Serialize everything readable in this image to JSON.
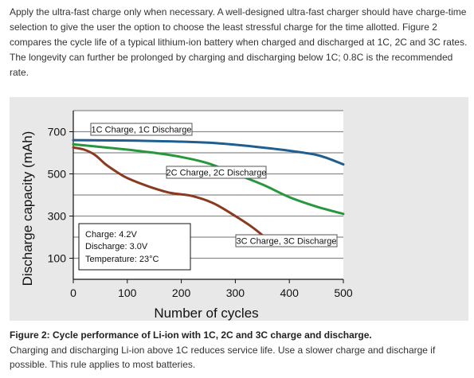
{
  "intro_text": "Apply the ultra-fast charge only when necessary. A well-designed ultra-fast charger should have charge-time selection to give the user the option to choose the least stressful charge for the time allotted. Figure 2 compares the cycle life of a typical lithium-ion battery when charged and discharged at 1C, 2C and 3C rates. The longevity can further be prolonged by charging and discharging below 1C; 0.8C is the recommended rate.",
  "caption": {
    "title": "Figure 2: Cycle performance of Li-ion with 1C, 2C and 3C charge and discharge.",
    "text": "Charging and discharging Li-ion above 1C reduces service life. Use a slower charge and discharge if possible. This rule applies to most batteries."
  },
  "chart_data": {
    "type": "line",
    "xlabel": "Number of cycles",
    "ylabel": "Discharge capacity (mAh)",
    "xlim": [
      0,
      500
    ],
    "ylim": [
      0,
      800
    ],
    "xticks": [
      0,
      100,
      200,
      300,
      400,
      500
    ],
    "yticks": [
      100,
      300,
      500,
      700
    ],
    "grid": true,
    "series": [
      {
        "name": "1C Charge, 1C Discharge",
        "color": "#1f5f8f",
        "x": [
          0,
          50,
          100,
          150,
          200,
          250,
          300,
          350,
          400,
          450,
          475,
          500
        ],
        "y": [
          660,
          659,
          658,
          656,
          653,
          648,
          638,
          625,
          610,
          590,
          570,
          545
        ]
      },
      {
        "name": "2C Charge, 2C Discharge",
        "color": "#27973e",
        "x": [
          0,
          50,
          100,
          150,
          200,
          250,
          300,
          350,
          400,
          450,
          500
        ],
        "y": [
          640,
          628,
          615,
          600,
          580,
          550,
          500,
          450,
          390,
          345,
          310
        ]
      },
      {
        "name": "3C Charge, 3C Discharge",
        "color": "#8a3a1f",
        "x": [
          0,
          20,
          40,
          60,
          80,
          100,
          140,
          180,
          220,
          260,
          300,
          330,
          355,
          365
        ],
        "y": [
          625,
          615,
          590,
          545,
          510,
          480,
          440,
          410,
          395,
          360,
          300,
          250,
          200,
          185
        ]
      }
    ],
    "annotation": {
      "lines": [
        "Charge: 4.2V",
        "Discharge: 3.0V",
        "Temperature: 23°C"
      ]
    }
  }
}
